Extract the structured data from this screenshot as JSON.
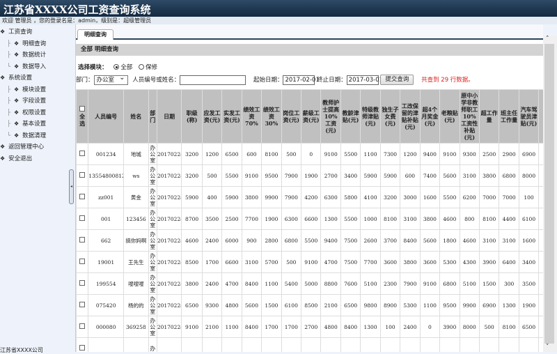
{
  "app": {
    "title": "江苏省XXXX公司工资查询系统",
    "welcome": "欢迎 管理员 ，您的登录名是：admin，级别是：超级管理员",
    "footer": "江苏省XXXX公司"
  },
  "sidebar": {
    "items": [
      {
        "label": "工资查询",
        "level": 0
      },
      {
        "label": "明细查询",
        "level": 1
      },
      {
        "label": "数据统计",
        "level": 1
      },
      {
        "label": "数据导入",
        "level": 1
      },
      {
        "label": "系统设置",
        "level": 0
      },
      {
        "label": "模块设置",
        "level": 1
      },
      {
        "label": "字段设置",
        "level": 1
      },
      {
        "label": "权限设置",
        "level": 1
      },
      {
        "label": "基本设置",
        "level": 1
      },
      {
        "label": "数据清理",
        "level": 1
      },
      {
        "label": "返回管理中心",
        "level": 0
      },
      {
        "label": "安全退出",
        "level": 0
      }
    ]
  },
  "main": {
    "tab": "明细查询",
    "section": "全部 明细查询",
    "module_label": "选择模块：",
    "module_options": [
      {
        "label": "全部",
        "selected": true
      },
      {
        "label": "保修",
        "selected": false
      }
    ],
    "filters": {
      "dept_label": "部门：",
      "dept_value": "办公室",
      "person_label": "人员编号或姓名：",
      "person_value": "",
      "start_label": "起始日期：",
      "start_value": "2017-02-01",
      "end_label": "终止日期：",
      "end_value": "2017-03-01",
      "submit": "提交查询",
      "result": "共查到 29 行数据。"
    },
    "columns": [
      "全选",
      "人员编号",
      "姓名",
      "部门",
      "日期",
      "职级(称)",
      "应发工资(元)",
      "实发工资(元)",
      "绩效工资70%",
      "绩效工资30%",
      "岗位工资(元)",
      "薪级工资(元)",
      "教师护士提高10%工资(元)",
      "教龄津贴(元)",
      "特级教师津贴(元)",
      "独生子女费(元)",
      "工改保留的津贴补贴(元)",
      "超4个月奖金(元)",
      "老粮贴(元)",
      "原中小学非教师职工10%工资性补贴(元)",
      "超工作量",
      "班主任工作量",
      "汽车驾驶员津贴(元)",
      "扣"
    ],
    "rows": [
      [
        "001234",
        "地城",
        "办公室",
        "20170224",
        "3200",
        "1200",
        "6500",
        "600",
        "8100",
        "500",
        "0",
        "9100",
        "5500",
        "1100",
        "7300",
        "1200",
        "9400",
        "9100",
        "9300",
        "2500",
        "2900",
        "6900",
        "89"
      ],
      [
        "13554800812",
        "ws",
        "办公室",
        "20170224",
        "3200",
        "500",
        "5500",
        "9100",
        "9500",
        "7900",
        "1900",
        "2700",
        "3400",
        "5900",
        "5900",
        "600",
        "7400",
        "5600",
        "3100",
        "3800",
        "6800",
        "8000",
        "40"
      ],
      [
        "zz001",
        "黄金",
        "办公室",
        "20170224",
        "5900",
        "400",
        "5900",
        "3800",
        "9900",
        "7900",
        "4200",
        "6300",
        "5800",
        "4100",
        "3200",
        "3000",
        "1600",
        "5500",
        "6200",
        "7000",
        "7000",
        "100",
        "70"
      ],
      [
        "001",
        "123456",
        "办公室",
        "20170224",
        "8700",
        "3500",
        "2500",
        "7700",
        "1900",
        "6300",
        "6600",
        "1300",
        "5500",
        "1000",
        "8100",
        "3100",
        "3800",
        "4600",
        "800",
        "8100",
        "4400",
        "6100",
        "26"
      ],
      [
        "662",
        "搞你妈啊",
        "办公室",
        "20170224",
        "4600",
        "2400",
        "6000",
        "900",
        "2800",
        "6800",
        "5500",
        "9400",
        "7500",
        "2600",
        "3700",
        "8400",
        "5600",
        "1800",
        "4600",
        "3100",
        "3100",
        "1600",
        "91"
      ],
      [
        "19001",
        "王先生",
        "办公室",
        "20170224",
        "8500",
        "1700",
        "6600",
        "3100",
        "5700",
        "500",
        "9100",
        "4700",
        "7500",
        "7700",
        "3600",
        "3800",
        "3600",
        "5300",
        "4300",
        "3900",
        "6400",
        "3400",
        "44"
      ],
      [
        "199554",
        "嗖嗖嗖",
        "办公室",
        "20170224",
        "3800",
        "2400",
        "4700",
        "8400",
        "1100",
        "5400",
        "5000",
        "8800",
        "7600",
        "5100",
        "2300",
        "7900",
        "9100",
        "6800",
        "5100",
        "1500",
        "300",
        "3500",
        "41"
      ],
      [
        "075420",
        "杨的的",
        "办公室",
        "20170224",
        "6500",
        "9300",
        "4800",
        "5600",
        "1500",
        "6100",
        "8500",
        "2100",
        "6500",
        "9800",
        "8900",
        "5300",
        "1100",
        "9500",
        "9900",
        "6900",
        "1300",
        "1900",
        "40"
      ],
      [
        "000080",
        "369258",
        "办公室",
        "20170224",
        "9100",
        "2100",
        "1100",
        "8400",
        "1700",
        "1700",
        "2700",
        "4800",
        "8400",
        "1300",
        "100",
        "2400",
        "0",
        "3900",
        "8000",
        "500",
        "8100",
        "6500",
        "51"
      ],
      [
        "",
        "",
        "办",
        "",
        "",
        "",
        "",
        "",
        "",
        "",
        "",
        "",
        "",
        "",
        "",
        "",
        "",
        "",
        "",
        "",
        "",
        "",
        ""
      ]
    ]
  }
}
